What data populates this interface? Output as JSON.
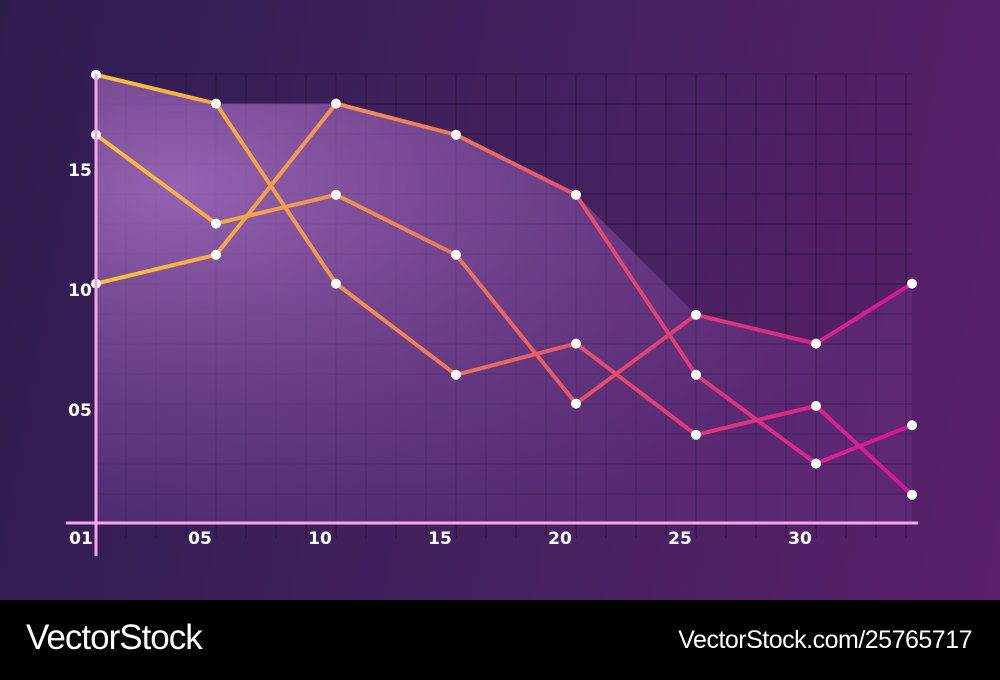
{
  "chart_data": {
    "type": "line",
    "title": "",
    "xlabel": "",
    "ylabel": "",
    "x": [
      1,
      6,
      11,
      16,
      21,
      26,
      31,
      35
    ],
    "x_ticks": [
      "01",
      "05",
      "10",
      "15",
      "20",
      "25",
      "30"
    ],
    "x_tick_values": [
      1,
      5,
      10,
      15,
      20,
      25,
      30
    ],
    "y_ticks": [
      "05",
      "10",
      "15"
    ],
    "y_tick_values": [
      5,
      10,
      15
    ],
    "xlim": [
      0.4,
      36
    ],
    "ylim": [
      0,
      19.5
    ],
    "grid": true,
    "area_fill": "upper envelope shaded purple",
    "series": [
      {
        "values": [
          19.3,
          18.1,
          10.6,
          6.8,
          8.1,
          4.3,
          5.5,
          1.8
        ]
      },
      {
        "values": [
          16.8,
          13.1,
          14.3,
          11.8,
          5.6,
          9.3,
          8.1,
          10.6
        ]
      },
      {
        "values": [
          10.6,
          11.8,
          18.1,
          16.8,
          14.3,
          6.8,
          3.1,
          4.7
        ]
      }
    ],
    "colors": {
      "line_start": "#f7c33a",
      "line_mid": "#e8735a",
      "line_end": "#d6149a",
      "axis": "#f3a6ee",
      "marker": "#ffffff"
    }
  },
  "watermark": {
    "brand": "VectorStock",
    "id": "VectorStock.com/25765717"
  }
}
